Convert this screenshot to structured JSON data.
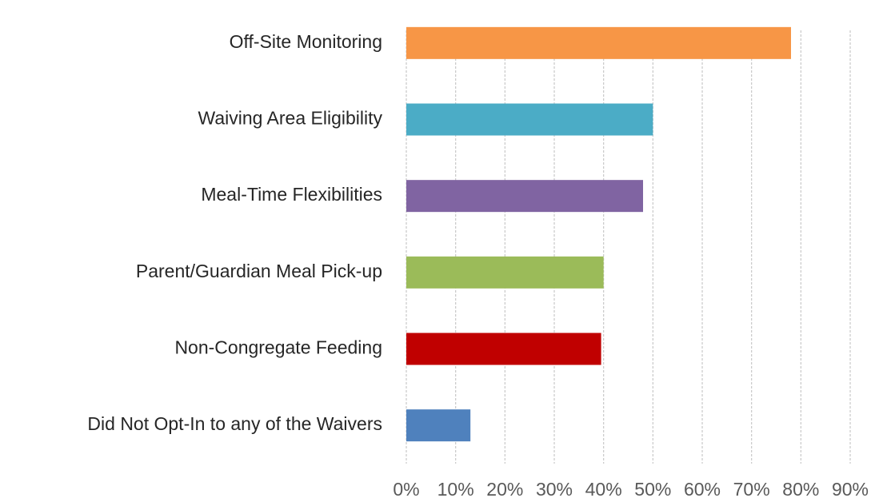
{
  "chart_data": {
    "type": "hbar",
    "categories": [
      "Off-Site Monitoring",
      "Waiving Area Eligibility",
      "Meal-Time Flexibilities",
      "Parent/Guardian Meal Pick-up",
      "Non-Congregate Feeding",
      "Did Not Opt-In to any of the Waivers"
    ],
    "values": [
      78,
      50,
      48,
      40,
      39.5,
      13
    ],
    "colors": [
      "#f79646",
      "#4bacc6",
      "#8064a2",
      "#9bbb59",
      "#c00000",
      "#4f81bd"
    ],
    "xlim": [
      0,
      90
    ],
    "xticks": [
      {
        "value": 0,
        "label": "0%"
      },
      {
        "value": 10,
        "label": "10%"
      },
      {
        "value": 20,
        "label": "20%"
      },
      {
        "value": 30,
        "label": "30%"
      },
      {
        "value": 40,
        "label": "40%"
      },
      {
        "value": 50,
        "label": "50%"
      },
      {
        "value": 60,
        "label": "60%"
      },
      {
        "value": 70,
        "label": "70%"
      },
      {
        "value": 80,
        "label": "80%"
      },
      {
        "value": 90,
        "label": "90%"
      }
    ],
    "grid": true
  }
}
